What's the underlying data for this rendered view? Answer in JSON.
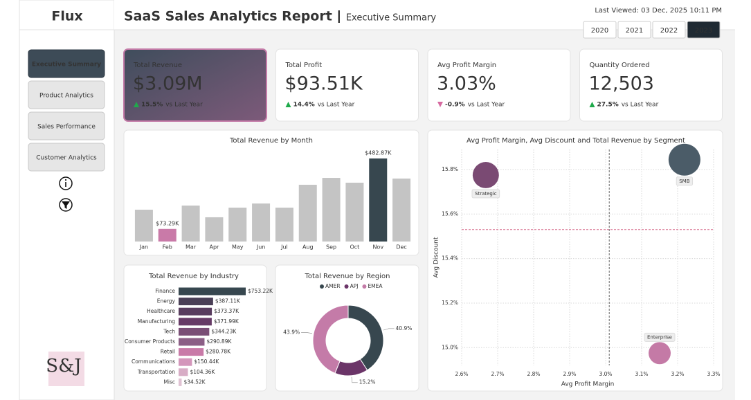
{
  "header": {
    "logo": "Flux",
    "title": "SaaS Sales Analytics Report",
    "subtitle": "Executive Summary",
    "last_viewed": "Last Viewed: 03 Dec, 2025 10:11 PM",
    "years": [
      "2020",
      "2021",
      "2022",
      "2023"
    ]
  },
  "nav": [
    "Executive Summary",
    "Product Analytics",
    "Sales Performance",
    "Customer Analytics"
  ],
  "brand": "S&J",
  "kpis": [
    {
      "label": "Total Revenue",
      "value": "$3.09M",
      "change": "15.5%",
      "note": "vs Last Year",
      "direction": "up"
    },
    {
      "label": "Total Profit",
      "value": "$93.51K",
      "change": "14.4%",
      "note": "vs Last Year",
      "direction": "up"
    },
    {
      "label": "Avg Profit Margin",
      "value": "3.03%",
      "change": "-0.9%",
      "note": "vs Last Year",
      "direction": "down"
    },
    {
      "label": "Quantity Ordered",
      "value": "12,503",
      "change": "27.5%",
      "note": "vs Last Year",
      "direction": "up"
    }
  ],
  "charts": {
    "month": {
      "type": "bar",
      "title": "Total Revenue by Month",
      "categories": [
        "Jan",
        "Feb",
        "Mar",
        "Apr",
        "May",
        "Jun",
        "Jul",
        "Aug",
        "Sep",
        "Oct",
        "Nov",
        "Dec"
      ],
      "values": [
        185,
        73.29,
        209,
        141,
        197,
        221,
        197,
        330,
        370,
        342,
        482.87,
        366
      ],
      "value_labels": [
        null,
        "$73.29K",
        null,
        null,
        null,
        null,
        null,
        null,
        null,
        null,
        "$482.87K",
        null
      ],
      "colors": [
        "#c4c4c4",
        "#c97aa8",
        "#c4c4c4",
        "#c4c4c4",
        "#c4c4c4",
        "#c4c4c4",
        "#c4c4c4",
        "#c4c4c4",
        "#c4c4c4",
        "#c4c4c4",
        "#37474f",
        "#c4c4c4"
      ]
    },
    "industry": {
      "type": "hbar",
      "title": "Total Revenue by Industry",
      "categories": [
        "Finance",
        "Energy",
        "Healthcare",
        "Manufacturing",
        "Tech",
        "Consumer Products",
        "Retail",
        "Communications",
        "Transportation",
        "Misc"
      ],
      "values": [
        753.22,
        387.11,
        373.37,
        371.99,
        344.23,
        290.89,
        280.78,
        150.44,
        104.36,
        34.52
      ],
      "value_labels": [
        "$753.22K",
        "$387.11K",
        "$373.37K",
        "$371.99K",
        "$344.23K",
        "$290.89K",
        "$280.78K",
        "$150.44K",
        "$104.36K",
        "$34.52K"
      ],
      "colors": [
        "#37474f",
        "#4a3f56",
        "#583c5e",
        "#663a66",
        "#7a4e76",
        "#8c5f86",
        "#c97aa8",
        "#d496bb",
        "#d8adc6",
        "#e0c2d3"
      ]
    },
    "region": {
      "type": "donut",
      "title": "Total Revenue by Region",
      "series": [
        {
          "name": "AMER",
          "color": "#37474f",
          "value": 40.9,
          "value_label": "40.9%"
        },
        {
          "name": "APJ",
          "color": "#6b3568",
          "value": 15.2,
          "value_label": "15.2%"
        },
        {
          "name": "EMEA",
          "color": "#c47ba8",
          "value": 43.9,
          "value_label": "43.9%"
        }
      ]
    },
    "segment": {
      "type": "scatter",
      "title": "Avg Profit Margin, Avg Discount and Total Revenue by Segment",
      "x_label": "Avg Profit Margin",
      "y_label": "Avg Discount",
      "xlim": [
        2.6,
        3.3
      ],
      "ylim": [
        14.92,
        15.89
      ],
      "xticks": [
        {
          "value": 2.6,
          "label": "2.6%"
        },
        {
          "value": 2.7,
          "label": "2.7%"
        },
        {
          "value": 2.8,
          "label": "2.8%"
        },
        {
          "value": 2.9,
          "label": "2.9%"
        },
        {
          "value": 3.0,
          "label": "3.0%"
        },
        {
          "value": 3.1,
          "label": "3.1%"
        },
        {
          "value": 3.2,
          "label": "3.2%"
        },
        {
          "value": 3.3,
          "label": "3.3%"
        }
      ],
      "yticks": [
        {
          "value": 15.0,
          "label": "15.0%"
        },
        {
          "value": 15.2,
          "label": "15.2%"
        },
        {
          "value": 15.4,
          "label": "15.4%"
        },
        {
          "value": 15.6,
          "label": "15.6%"
        },
        {
          "value": 15.8,
          "label": "15.8%"
        }
      ],
      "x_ref": 3.01,
      "y_ref": 15.53,
      "points": [
        {
          "name": "Strategic",
          "x": 2.667,
          "y": 15.775,
          "size": 0.97,
          "color": "#7a4a73"
        },
        {
          "name": "SMB",
          "x": 3.219,
          "y": 15.844,
          "size": 1.43,
          "color": "#4b5c68"
        },
        {
          "name": "Enterprise",
          "x": 3.15,
          "y": 14.975,
          "size": 0.69,
          "color": "#c47aa6"
        }
      ]
    }
  }
}
